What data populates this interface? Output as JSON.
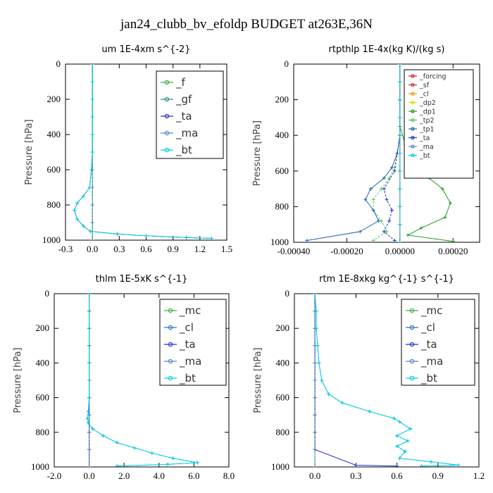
{
  "title": "jan24_clubb_bv_efoldp  BUDGET at263E,36N",
  "chart_data": [
    {
      "type": "line",
      "title": "um  1E-4xm s^{-2}",
      "ylabel": "Pressure [hPa]",
      "xlim": [
        -0.3,
        1.5
      ],
      "ylim": [
        1000,
        0
      ],
      "x_ticks": [
        "-0.3",
        "0.0",
        "0.3",
        "0.6",
        "0.9",
        "1.2",
        "1.5"
      ],
      "y_ticks": [
        "0",
        "200",
        "400",
        "600",
        "800",
        "1000"
      ],
      "legend_position": "top-right",
      "series": [
        {
          "name": "_f",
          "color": "#3cb043",
          "x": [
            0,
            0,
            0,
            0,
            0,
            0,
            0,
            0,
            0,
            0,
            0
          ],
          "y": [
            0,
            100,
            200,
            300,
            400,
            500,
            600,
            700,
            800,
            900,
            1000
          ]
        },
        {
          "name": "_gf",
          "color": "#2e8b8b",
          "x": [
            0,
            0,
            0,
            0,
            0,
            0,
            0,
            0,
            0,
            0,
            0
          ],
          "y": [
            0,
            100,
            200,
            300,
            400,
            500,
            600,
            700,
            800,
            900,
            1000
          ]
        },
        {
          "name": "_ta",
          "color": "#2233cc",
          "x": [
            0,
            0,
            0,
            0,
            0,
            0,
            -0.01,
            -0.03,
            -0.1,
            -0.17,
            -0.2,
            -0.17,
            -0.1,
            -0.02,
            0.28,
            0.6,
            1.05,
            1.33
          ],
          "y": [
            0,
            100,
            200,
            300,
            400,
            500,
            600,
            700,
            750,
            790,
            830,
            880,
            920,
            950,
            965,
            975,
            985,
            990
          ]
        },
        {
          "name": "_ma",
          "color": "#5588cc",
          "x": [
            0,
            0,
            0,
            0,
            0,
            0,
            0,
            0,
            0,
            0,
            0
          ],
          "y": [
            0,
            100,
            200,
            300,
            400,
            500,
            600,
            700,
            800,
            900,
            1000
          ]
        },
        {
          "name": "_bt",
          "color": "#00d0e0",
          "x": [
            0,
            0,
            0,
            0,
            0,
            0,
            -0.01,
            -0.03,
            -0.1,
            -0.17,
            -0.2,
            -0.17,
            -0.1,
            -0.02,
            0.28,
            0.6,
            1.05,
            1.33
          ],
          "y": [
            0,
            100,
            200,
            300,
            400,
            500,
            600,
            700,
            750,
            790,
            830,
            880,
            920,
            950,
            965,
            975,
            985,
            990
          ]
        }
      ]
    },
    {
      "type": "line",
      "title": "rtpthlp  1E-4x(kg K)/(kg s)",
      "ylabel": "Pressure [hPa]",
      "xlim": [
        -0.0004,
        0.0003
      ],
      "ylim": [
        1000,
        0
      ],
      "x_ticks": [
        "-0.00040",
        "-0.00020",
        "0.00000",
        "0.00020"
      ],
      "x_tick_values": [
        -0.0004,
        -0.0002,
        0.0,
        0.0002
      ],
      "y_ticks": [
        "0",
        "200",
        "400",
        "600",
        "800",
        "1000"
      ],
      "legend_position": "top-right",
      "series": [
        {
          "name": "_forcing",
          "color": "#dd2222",
          "x": [
            0,
            0,
            0,
            0,
            0,
            0,
            0,
            0,
            0,
            0,
            0
          ],
          "y": [
            0,
            100,
            200,
            300,
            400,
            500,
            600,
            700,
            800,
            900,
            1000
          ]
        },
        {
          "name": "_sf",
          "color": "#cc3333",
          "x": [
            0,
            0,
            0,
            0,
            0,
            0,
            0,
            0,
            0,
            0,
            0
          ],
          "y": [
            0,
            100,
            200,
            300,
            400,
            500,
            600,
            700,
            800,
            900,
            1000
          ]
        },
        {
          "name": "_cl",
          "color": "#ee9900",
          "x": [
            0,
            0,
            0,
            0,
            0,
            0,
            0,
            0,
            0,
            0,
            0
          ],
          "y": [
            0,
            100,
            200,
            300,
            400,
            500,
            600,
            700,
            800,
            900,
            1000
          ]
        },
        {
          "name": "_dp2",
          "color": "#dddd00",
          "x": [
            0,
            0,
            0,
            0,
            0,
            0,
            0,
            0,
            0,
            0,
            0
          ],
          "y": [
            0,
            100,
            200,
            300,
            400,
            500,
            600,
            700,
            800,
            900,
            1000
          ]
        },
        {
          "name": "_dp1",
          "color": "#229922",
          "x": [
            0,
            0,
            0,
            2e-05,
            4e-05,
            7e-05,
            0.00011,
            0.00016,
            0.00019,
            0.00017,
            8e-05,
            3e-05,
            0.0002
          ],
          "y": [
            0,
            200,
            350,
            450,
            520,
            580,
            640,
            700,
            780,
            860,
            920,
            960,
            995
          ]
        },
        {
          "name": "_tp2",
          "color": "#55cc55",
          "x": [
            0,
            0,
            0,
            -1e-05,
            -2e-05,
            -4e-05,
            -7e-05,
            -0.0001,
            -0.0001,
            -7e-05,
            -5e-05,
            -0.0001
          ],
          "y": [
            0,
            200,
            400,
            500,
            580,
            640,
            700,
            760,
            820,
            880,
            940,
            990
          ]
        },
        {
          "name": "_tp1",
          "color": "#2266aa",
          "x": [
            0,
            0,
            0,
            -1e-05,
            -3e-05,
            -6e-05,
            -0.00011,
            -0.00013,
            -0.0001,
            -8e-05,
            -0.00015,
            -0.00035
          ],
          "y": [
            0,
            200,
            400,
            500,
            580,
            640,
            700,
            760,
            820,
            880,
            940,
            990
          ]
        },
        {
          "name": "_ta",
          "color": "#2233cc",
          "x": [
            0,
            0,
            0,
            -1e-05,
            -2e-05,
            -6e-05,
            -5e-05,
            -3e-05,
            -4e-05,
            -6e-05,
            -2e-05
          ],
          "y": [
            0,
            200,
            400,
            500,
            600,
            700,
            760,
            820,
            880,
            940,
            990
          ]
        },
        {
          "name": "_ma",
          "color": "#5588cc",
          "x": [
            0,
            0,
            0,
            0,
            0,
            0,
            0,
            0,
            0,
            0,
            0
          ],
          "y": [
            0,
            100,
            200,
            300,
            400,
            500,
            600,
            700,
            800,
            900,
            1000
          ]
        },
        {
          "name": "_bt",
          "color": "#00d0e0",
          "x": [
            0,
            0,
            0,
            0,
            0,
            0,
            0,
            0,
            0,
            0,
            0
          ],
          "y": [
            0,
            100,
            200,
            300,
            400,
            500,
            600,
            700,
            800,
            900,
            1000
          ]
        }
      ]
    },
    {
      "type": "line",
      "title": "thlm  1E-5xK s^{-1}",
      "ylabel": "Pressure [hPa]",
      "xlim": [
        -2.0,
        8.0
      ],
      "ylim": [
        1000,
        0
      ],
      "x_ticks": [
        "-2.0",
        "0.0",
        "2.0",
        "4.0",
        "6.0",
        "8.0"
      ],
      "y_ticks": [
        "0",
        "200",
        "400",
        "600",
        "800",
        "1000"
      ],
      "legend_position": "top-right",
      "series": [
        {
          "name": "_mc",
          "color": "#3cb043",
          "x": [
            0,
            0,
            0,
            0,
            0,
            0,
            0,
            0,
            0,
            0,
            0
          ],
          "y": [
            0,
            100,
            200,
            300,
            400,
            500,
            600,
            700,
            800,
            900,
            1000
          ]
        },
        {
          "name": "_cl",
          "color": "#2277cc",
          "x": [
            0,
            0,
            0,
            0,
            -0.05,
            -0.1,
            -0.05,
            0.2,
            0.8,
            1.6,
            2.6,
            3.6,
            4.8,
            6.2,
            4.5,
            1.6
          ],
          "y": [
            0,
            200,
            400,
            600,
            680,
            720,
            745,
            780,
            820,
            860,
            890,
            920,
            950,
            975,
            985,
            995
          ]
        },
        {
          "name": "_ta",
          "color": "#2233cc",
          "x": [
            0,
            0,
            0,
            0,
            0,
            0,
            0,
            0,
            0,
            0,
            0
          ],
          "y": [
            0,
            100,
            200,
            300,
            400,
            500,
            600,
            700,
            800,
            900,
            1000
          ]
        },
        {
          "name": "_ma",
          "color": "#5588cc",
          "x": [
            0,
            0,
            0,
            0,
            0,
            0,
            0,
            0,
            0,
            0,
            0
          ],
          "y": [
            0,
            100,
            200,
            300,
            400,
            500,
            600,
            700,
            800,
            900,
            1000
          ]
        },
        {
          "name": "_bt",
          "color": "#00d0e0",
          "x": [
            0,
            0,
            0,
            0,
            -0.05,
            -0.1,
            -0.05,
            0.2,
            0.8,
            1.6,
            2.6,
            3.6,
            4.8,
            6.2,
            4.5,
            1.6
          ],
          "y": [
            0,
            200,
            400,
            600,
            680,
            720,
            745,
            780,
            820,
            860,
            890,
            920,
            950,
            975,
            985,
            995
          ]
        }
      ]
    },
    {
      "type": "line",
      "title": "rtm  1E-8xkg kg^{-1} s^{-1}",
      "ylabel": "Pressure [hPa]",
      "xlim": [
        -0.15,
        1.2
      ],
      "ylim": [
        1000,
        0
      ],
      "x_ticks": [
        "0.0",
        "0.3",
        "0.6",
        "0.9",
        "1.2"
      ],
      "x_tick_values": [
        0.0,
        0.3,
        0.6,
        0.9,
        1.2
      ],
      "y_ticks": [
        "0",
        "200",
        "400",
        "600",
        "800",
        "1000"
      ],
      "legend_position": "top-right",
      "series": [
        {
          "name": "_mc",
          "color": "#3cb043",
          "x": [
            0,
            0,
            0,
            0,
            0,
            0,
            0,
            0,
            0,
            0,
            0
          ],
          "y": [
            0,
            100,
            200,
            300,
            400,
            500,
            600,
            700,
            800,
            900,
            1000
          ]
        },
        {
          "name": "_cl",
          "color": "#2277cc",
          "x": [
            0,
            0.01,
            0.01,
            0.02,
            0.03,
            0.05,
            0.1,
            0.2,
            0.4,
            0.58,
            0.62,
            0.7,
            0.6,
            0.68,
            0.6,
            0.66,
            0.62,
            0.85,
            1.05,
            0.78
          ],
          "y": [
            0,
            100,
            200,
            300,
            400,
            500,
            580,
            630,
            680,
            720,
            740,
            780,
            820,
            850,
            880,
            910,
            950,
            970,
            990,
            995
          ]
        },
        {
          "name": "_ta",
          "color": "#2233cc",
          "x": [
            0,
            0,
            0,
            0,
            0,
            0,
            0,
            0,
            0,
            0,
            0.3,
            0.6
          ],
          "y": [
            0,
            100,
            200,
            300,
            400,
            500,
            600,
            700,
            800,
            900,
            990,
            995
          ]
        },
        {
          "name": "_ma",
          "color": "#5588cc",
          "x": [
            0,
            0,
            0,
            0,
            0,
            0,
            0,
            0,
            0,
            0,
            0
          ],
          "y": [
            0,
            100,
            200,
            300,
            400,
            500,
            600,
            700,
            800,
            900,
            1000
          ]
        },
        {
          "name": "_bt",
          "color": "#00d0e0",
          "x": [
            0,
            0.01,
            0.01,
            0.02,
            0.03,
            0.05,
            0.1,
            0.2,
            0.4,
            0.58,
            0.62,
            0.7,
            0.6,
            0.68,
            0.6,
            0.66,
            0.62,
            0.85,
            1.05,
            0.78
          ],
          "y": [
            0,
            100,
            200,
            300,
            400,
            500,
            580,
            630,
            680,
            720,
            740,
            780,
            820,
            850,
            880,
            910,
            950,
            970,
            990,
            995
          ]
        }
      ]
    }
  ]
}
